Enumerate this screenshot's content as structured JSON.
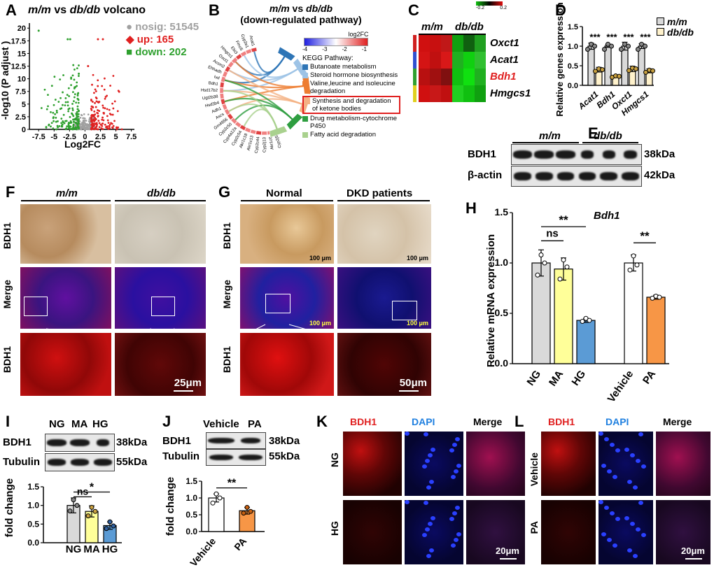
{
  "panel_letters": {
    "A": "A",
    "B": "B",
    "C": "C",
    "D": "D",
    "E": "E",
    "F": "F",
    "G": "G",
    "H": "H",
    "I": "I",
    "J": "J",
    "K": "K",
    "L": "L"
  },
  "volcano": {
    "title_mm": "m/m",
    "title_vs": " vs ",
    "title_dbdb": "db/db",
    "title_rest": " volcano",
    "legend": [
      {
        "label": "nosig: 51545",
        "color": "#a0a0a0",
        "marker": "●"
      },
      {
        "label": "up: 165",
        "color": "#e02020",
        "marker": "◆"
      },
      {
        "label": "down: 202",
        "color": "#2ea02e",
        "marker": "■"
      }
    ],
    "ylabel": "-log10 (P adjust )",
    "xlabel": "Log2FC",
    "xticks": [
      "-7.5",
      "-5",
      "-2.5",
      "0",
      "2.5",
      "5",
      "7.5"
    ],
    "yticks": [
      "0",
      "2.5",
      "5",
      "7.5",
      "10",
      "12.5",
      "15",
      "17.5",
      "20"
    ]
  },
  "chord": {
    "title_mm": "m/m",
    "title_vs": " vs ",
    "title_dbdb": "db/db",
    "subtitle": "(down-regulated pathway)",
    "scale_label": "log2FC",
    "scale_ticks": [
      "-4",
      "-3",
      "-2",
      "-1"
    ],
    "kegg_title": "KEGG Pathway:",
    "pathways": [
      {
        "label": "Butanoate metabolism",
        "color": "#2e75b6"
      },
      {
        "label": "Steroid hormone biosynthesis",
        "color": "#9dc3e6"
      },
      {
        "label": "Valine,leucine and isoleucine degradation",
        "color": "#ed7d31"
      },
      {
        "label": "Synthesis and degradation of ketone bodies",
        "color": "#f4b183",
        "boxed": true
      },
      {
        "label": "Drug metabolism-cytochrome P450",
        "color": "#2e9e40"
      },
      {
        "label": "Fatty acid degradation",
        "color": "#a9d18e"
      }
    ],
    "genes_left": [
      "Hmgcs1",
      "Oxct1",
      "Acsm2",
      "Ehhadh",
      "Ivd",
      "Bdh1",
      "Hsd17b2",
      "Ugt2b38",
      "Hsd3b4",
      "Adh1",
      "Ascs",
      "Gm4956",
      "Cyp2c50",
      "Cyp4a12a",
      "Cyp2c54"
    ],
    "genes_top": [
      "Acat1",
      "Cyp2e1",
      "Fmo5",
      "Ebi3"
    ],
    "genes_bottom": [
      "Akr1c18",
      "Akr1c13",
      "Cyp2c44",
      "Cyp2j13",
      "Akr1c6",
      "Cyp2j5"
    ]
  },
  "heatmap": {
    "groups": [
      {
        "label": "m/m"
      },
      {
        "label": "db/db"
      }
    ],
    "scale_ticks": [
      "-0.2",
      "0",
      "0.2"
    ],
    "genes": [
      {
        "label": "Oxct1",
        "color": "#000000"
      },
      {
        "label": "Acat1",
        "color": "#000000"
      },
      {
        "label": "Bdh1",
        "color": "#e02020"
      },
      {
        "label": "Hmgcs1",
        "color": "#000000"
      }
    ],
    "cells": [
      [
        "#d01010",
        "#c81010",
        "#c01818",
        "#10a010",
        "#106010",
        "#20a020"
      ],
      [
        "#d41414",
        "#c01010",
        "#d81818",
        "#20b020",
        "#10d010",
        "#30c030"
      ],
      [
        "#b81010",
        "#a01010",
        "#801010",
        "#10c010",
        "#10e010",
        "#20b020"
      ],
      [
        "#d01010",
        "#c81818",
        "#c01010",
        "#20d020",
        "#10c010",
        "#10a010"
      ]
    ],
    "row_markers": [
      "#d02020",
      "#3050d0",
      "#30a030",
      "#e0d020"
    ]
  },
  "qpcr_genes": {
    "legend": [
      {
        "label": "m/m",
        "color": "#d9d9d9"
      },
      {
        "label": "db/db",
        "color": "#fff2cc"
      }
    ],
    "ylabel": "Relative genes expression",
    "yticks": [
      "0.0",
      "0.5",
      "1.0",
      "1.5"
    ],
    "genes": [
      "Acat1",
      "Bdh1",
      "Oxct1",
      "Hmgcs1"
    ],
    "sig": [
      "***",
      "***",
      "***",
      "***"
    ]
  },
  "chart_data": [
    {
      "panel": "D",
      "type": "bar",
      "categories": [
        "Acat1",
        "Bdh1",
        "Oxct1",
        "Hmgcs1"
      ],
      "series": [
        {
          "name": "m/m",
          "values": [
            1.0,
            1.0,
            1.0,
            1.0
          ],
          "errors": [
            0.08,
            0.03,
            0.1,
            0.06
          ]
        },
        {
          "name": "db/db",
          "values": [
            0.4,
            0.23,
            0.42,
            0.37
          ],
          "errors": [
            0.06,
            0.02,
            0.07,
            0.05
          ]
        }
      ],
      "ylabel": "Relative genes expression",
      "ylim": [
        0,
        1.5
      ]
    },
    {
      "panel": "H",
      "type": "bar",
      "title": "Bdh1",
      "categories": [
        "NG",
        "MA",
        "HG",
        "Vehicle",
        "PA"
      ],
      "values": [
        1.0,
        0.94,
        0.43,
        1.0,
        0.66
      ],
      "errors": [
        0.13,
        0.11,
        0.02,
        0.08,
        0.02
      ],
      "colors": [
        "#d9d9d9",
        "#ffff99",
        "#5b9bd5",
        "#ffffff",
        "#f79646"
      ],
      "ylabel": "Relative mRNA expression",
      "ylim": [
        0,
        1.5
      ]
    },
    {
      "panel": "I",
      "type": "bar",
      "categories": [
        "NG",
        "MA",
        "HG"
      ],
      "values": [
        1.0,
        0.84,
        0.46
      ],
      "errors": [
        0.2,
        0.15,
        0.1
      ],
      "colors": [
        "#d9d9d9",
        "#ffff99",
        "#5b9bd5"
      ],
      "ylabel": "fold change",
      "ylim": [
        0,
        1.5
      ]
    },
    {
      "panel": "J",
      "type": "bar",
      "categories": [
        "Vehicle",
        "PA"
      ],
      "values": [
        1.0,
        0.62
      ],
      "errors": [
        0.12,
        0.1
      ],
      "colors": [
        "#ffffff",
        "#f79646"
      ],
      "ylabel": "fold change",
      "ylim": [
        0,
        1.5
      ]
    }
  ],
  "panelH": {
    "title": "Bdh1",
    "ylabel": "Relative mRNA expression",
    "yticks": [
      "0.0",
      "0.5",
      "1.0",
      "1.5"
    ],
    "xlabels": [
      "NG",
      "MA",
      "HG",
      "Vehicle",
      "PA"
    ],
    "sig_ns": "ns",
    "sig_2": "**",
    "sig_3": "**"
  },
  "westernE": {
    "groups": [
      "m/m",
      "db/db"
    ],
    "rows": [
      {
        "label": "BDH1",
        "kda": "38kDa"
      },
      {
        "label": "β-actin",
        "kda": "42kDa"
      }
    ]
  },
  "panelF": {
    "cols": [
      "m/m",
      "db/db"
    ],
    "rows": [
      "BDH1",
      "Merge",
      "BDH1"
    ],
    "scale": "25μm"
  },
  "panelG": {
    "cols": [
      "Normal",
      "DKD patients"
    ],
    "rows": [
      "BDH1",
      "Merge",
      "BDH1"
    ],
    "scale": "50μm",
    "small_scale": "100 μm"
  },
  "panelI": {
    "lanes": [
      "NG",
      "MA",
      "HG"
    ],
    "rows": [
      {
        "label": "BDH1",
        "kda": "38kDa"
      },
      {
        "label": "Tubulin",
        "kda": "55kDa"
      }
    ],
    "ylabel": "fold change",
    "yticks": [
      "0.0",
      "0.5",
      "1.0",
      "1.5"
    ],
    "sig_ns": "ns",
    "sig_star": "*"
  },
  "panelJ": {
    "lanes": [
      "Vehicle",
      "PA"
    ],
    "rows": [
      {
        "label": "BDH1",
        "kda": "38kDa"
      },
      {
        "label": "Tubulin",
        "kda": "55kDa"
      }
    ],
    "ylabel": "fold change",
    "yticks": [
      "0.0",
      "0.5",
      "1.0",
      "1.5"
    ],
    "sig": "**"
  },
  "panelK": {
    "cols": [
      {
        "label": "BDH1",
        "color": "#e02020"
      },
      {
        "label": "DAPI",
        "color": "#2080e0"
      },
      {
        "label": "Merge",
        "color": "#000000"
      }
    ],
    "rows": [
      "NG",
      "HG"
    ],
    "scale": "20μm"
  },
  "panelL": {
    "cols": [
      {
        "label": "BDH1",
        "color": "#e02020"
      },
      {
        "label": "DAPI",
        "color": "#2080e0"
      },
      {
        "label": "Merge",
        "color": "#000000"
      }
    ],
    "rows": [
      "Vehicle",
      "PA"
    ],
    "scale": "20μm"
  }
}
